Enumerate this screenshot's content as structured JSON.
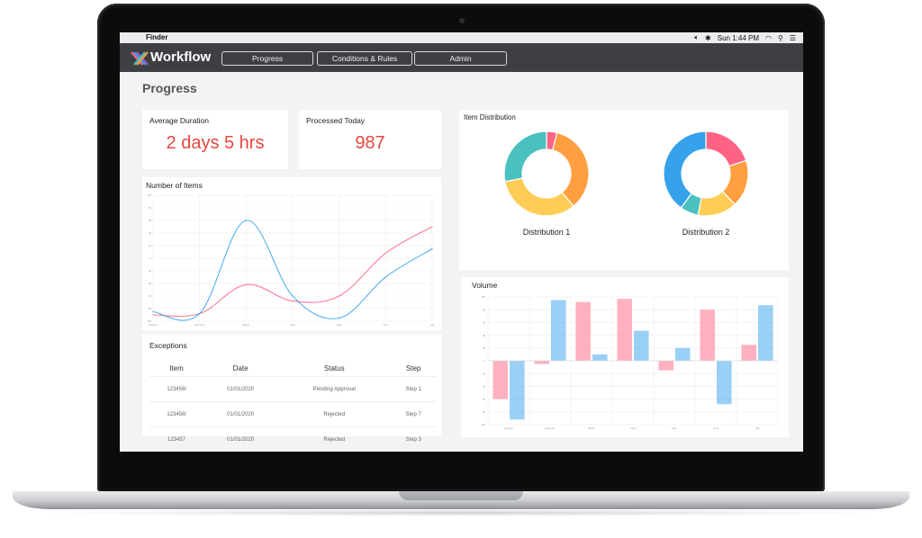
{
  "menubar": {
    "apple": "",
    "app_name": "Finder",
    "clock": "Sun 1:44 PM"
  },
  "app": {
    "brand": "Workflow",
    "nav": [
      "Progress",
      "Conditions & Rules",
      "Admin"
    ]
  },
  "page_title": "Progress",
  "kpis": {
    "avg_duration_label": "Average Duration",
    "avg_duration_value": "2 days 5 hrs",
    "processed_today_label": "Processed Today",
    "processed_today_value": "987"
  },
  "exceptions": {
    "title": "Exceptions",
    "columns": [
      "Item",
      "Date",
      "Status",
      "Step"
    ],
    "rows": [
      [
        "123456l",
        "01/01/2020",
        "Pending Approval",
        "Step 1"
      ],
      [
        "123456l",
        "01/01/2020",
        "Rejected",
        "Step 7"
      ],
      [
        "123457",
        "01/01/2020",
        "Rejected",
        "Step 3"
      ]
    ]
  },
  "colors": {
    "pink": "#ff6384",
    "blue": "#36a2eb",
    "orange": "#ff9f40",
    "yellow": "#ffcd56",
    "teal": "#4bc0c0",
    "kpi_red": "#e8473f"
  },
  "chart_data": [
    {
      "type": "line",
      "title": "Number of Items",
      "categories": [
        "January",
        "February",
        "March",
        "April",
        "May",
        "June",
        "July"
      ],
      "ylim": [
        -100,
        100
      ],
      "series": [
        {
          "values": [
            -90,
            -88,
            -42,
            -68,
            -60,
            8,
            50
          ],
          "color": "#ff6384"
        },
        {
          "values": [
            -85,
            -88,
            60,
            -60,
            -95,
            -30,
            15
          ],
          "color": "#36a2eb"
        }
      ],
      "smooth": true,
      "grid": true
    },
    {
      "type": "pie",
      "title": "Item Distribution",
      "charts": [
        {
          "label": "Distribution 1",
          "values": [
            4,
            35,
            33,
            28
          ],
          "colors": [
            "#ff6384",
            "#ff9f40",
            "#ffcd56",
            "#4bc0c0"
          ]
        },
        {
          "label": "Distribution 2",
          "values": [
            20,
            18,
            15,
            7,
            40
          ],
          "colors": [
            "#ff6384",
            "#ff9f40",
            "#ffcd56",
            "#4bc0c0",
            "#36a2eb"
          ]
        }
      ],
      "donut": true
    },
    {
      "type": "bar",
      "title": "Volume",
      "categories": [
        "January",
        "February",
        "March",
        "April",
        "May",
        "June",
        "July"
      ],
      "ylim": [
        -100,
        100
      ],
      "series": [
        {
          "values": [
            -60,
            -5,
            92,
            97,
            -15,
            80,
            25
          ],
          "color": "#ff6384"
        },
        {
          "values": [
            -92,
            95,
            10,
            47,
            20,
            -68,
            87
          ],
          "color": "#36a2eb"
        }
      ],
      "grid": true
    }
  ]
}
